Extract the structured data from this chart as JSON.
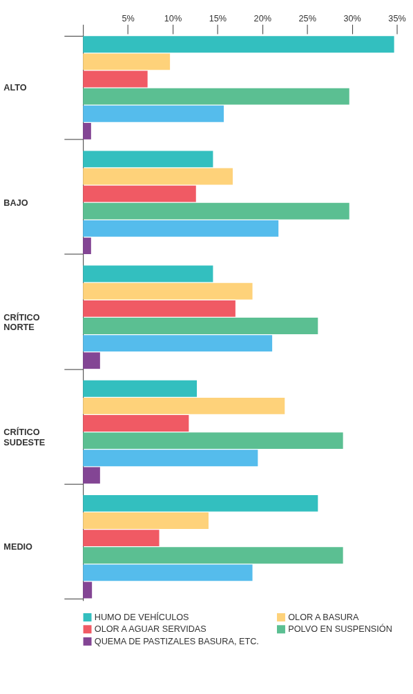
{
  "chart_data": {
    "type": "bar",
    "orientation": "horizontal",
    "categories": [
      "ALTO",
      "BAJO",
      "CRÍTICO NORTE",
      "CRÍTICO SUDESTE",
      "MEDIO"
    ],
    "series": [
      {
        "name": "HUMO DE VEHÍCULOS",
        "color": "#33bfbf",
        "values": [
          34.7,
          14.5,
          14.5,
          12.7,
          26.2
        ]
      },
      {
        "name": "OLOR A BASURA",
        "color": "#fed27a",
        "values": [
          9.7,
          16.7,
          18.9,
          22.5,
          14.0
        ]
      },
      {
        "name": "OLOR A AGUAR SERVIDAS",
        "color": "#f05a64",
        "values": [
          7.2,
          12.6,
          17.0,
          11.8,
          8.5
        ]
      },
      {
        "name": "POLVO EN SUSPENSIÓN",
        "color": "#5bbf92",
        "values": [
          29.7,
          29.7,
          26.2,
          29.0,
          29.0
        ]
      },
      {
        "color": "#55bcec",
        "values": [
          15.7,
          21.8,
          21.1,
          19.5,
          18.9
        ]
      },
      {
        "name": "QUEMA DE PASTIZALES BASURA, ETC.",
        "color": "#834594",
        "values": [
          0.9,
          0.9,
          1.9,
          1.9,
          1.0
        ]
      }
    ],
    "xlim": [
      0,
      35
    ],
    "xticks": [
      {
        "value": 0,
        "label": null
      },
      {
        "value": 5,
        "label": "5%"
      },
      {
        "value": 10,
        "label": "10%"
      },
      {
        "value": 15,
        "label": "15%"
      },
      {
        "value": 20,
        "label": "20%"
      },
      {
        "value": 25,
        "label": "25%"
      },
      {
        "value": 30,
        "label": "30%"
      },
      {
        "value": 35,
        "label": "35%"
      }
    ],
    "grid": false,
    "legend": "bottom"
  }
}
